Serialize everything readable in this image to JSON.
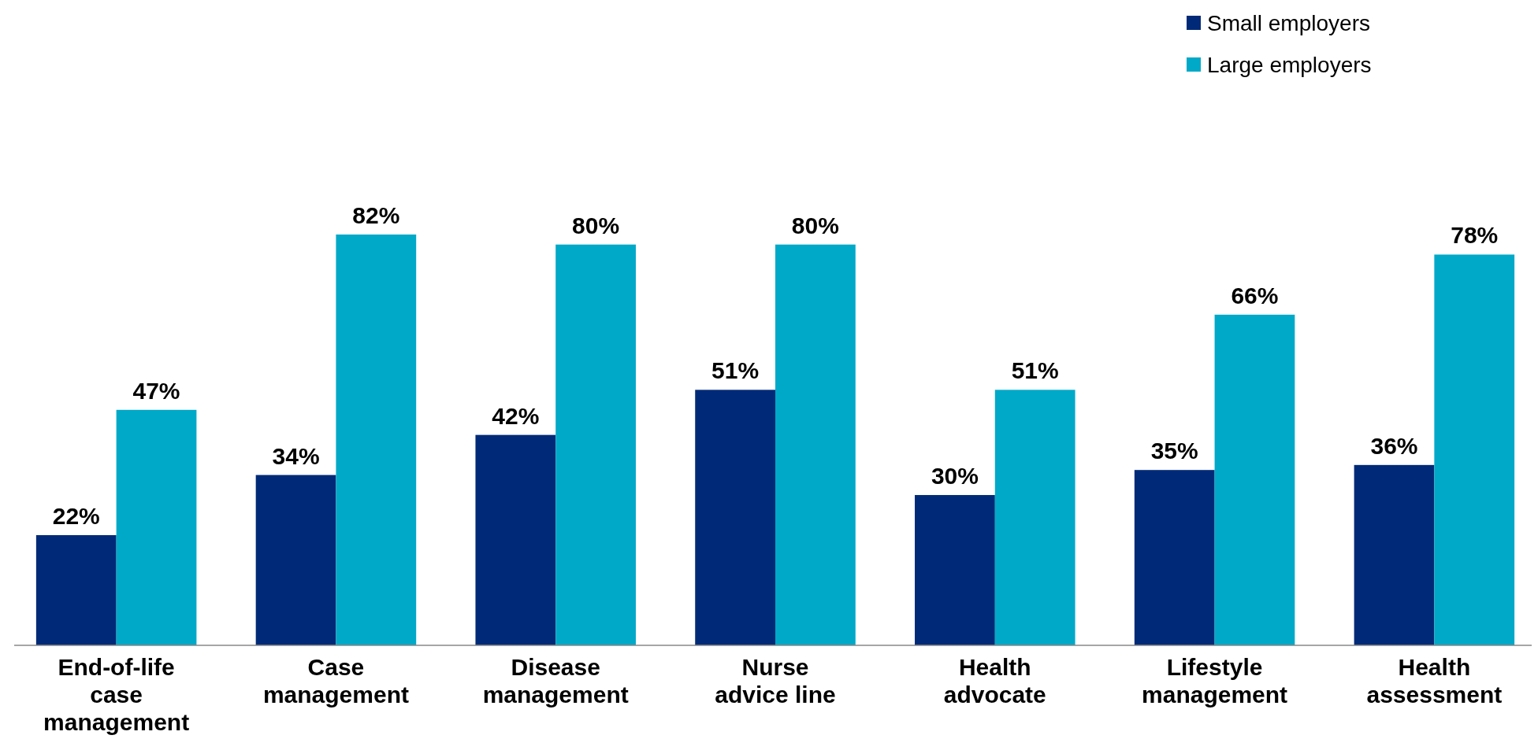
{
  "chart_data": {
    "type": "bar",
    "categories": [
      "End-of-life\ncase\nmanagement",
      "Case\nmanagement",
      "Disease\nmanagement",
      "Nurse\nadvice line",
      "Health\nadvocate",
      "Lifestyle\nmanagement",
      "Health\nassessment"
    ],
    "series": [
      {
        "name": "Small employers",
        "color": "#002a77",
        "values": [
          22,
          34,
          42,
          51,
          30,
          35,
          36
        ],
        "value_labels": [
          "22%",
          "34%",
          "42%",
          "51%",
          "30%",
          "35%",
          "36%"
        ]
      },
      {
        "name": "Large employers",
        "color": "#00a9c8",
        "values": [
          47,
          82,
          80,
          80,
          51,
          66,
          78
        ],
        "value_labels": [
          "47%",
          "82%",
          "80%",
          "80%",
          "51%",
          "66%",
          "78%"
        ]
      }
    ],
    "legend": "top right",
    "tick_labels": "x"
  }
}
